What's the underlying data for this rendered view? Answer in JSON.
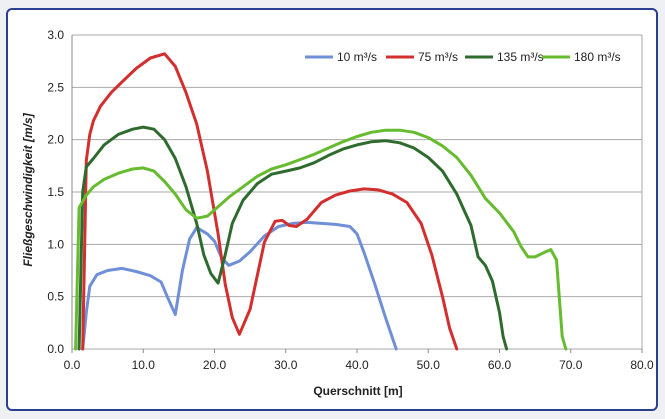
{
  "chart_data": {
    "type": "line",
    "title": "",
    "xlabel": "Querschnitt [m]",
    "ylabel": "Fließgeschwindigkeit [m/s]",
    "xlim": [
      0,
      80
    ],
    "ylim": [
      0,
      3.0
    ],
    "x_ticks": [
      "0.0",
      "10.0",
      "20.0",
      "30.0",
      "40.0",
      "50.0",
      "60.0",
      "70.0",
      "80.0"
    ],
    "y_ticks": [
      "0.0",
      "0.5",
      "1.0",
      "1.5",
      "2.0",
      "2.5",
      "3.0"
    ],
    "grid": "horizontal",
    "legend_position": "top-right",
    "series": [
      {
        "name": "10 m³/s",
        "color": "#6f8fd6",
        "x": [
          1.5,
          2.0,
          2.5,
          3.5,
          5.0,
          7.0,
          9.0,
          11.0,
          12.5,
          13.5,
          14.5,
          15.5,
          16.5,
          17.5,
          19.0,
          20.0,
          21.0,
          22.0,
          23.5,
          25.0,
          27.0,
          29.0,
          31.0,
          33.0,
          35.0,
          37.0,
          39.0,
          40.0,
          41.0,
          42.5,
          44.0,
          45.5
        ],
        "y": [
          0.0,
          0.35,
          0.6,
          0.71,
          0.75,
          0.77,
          0.74,
          0.7,
          0.64,
          0.48,
          0.33,
          0.75,
          1.05,
          1.16,
          1.1,
          1.03,
          0.87,
          0.8,
          0.84,
          0.93,
          1.08,
          1.17,
          1.2,
          1.21,
          1.2,
          1.19,
          1.17,
          1.1,
          0.92,
          0.62,
          0.3,
          0.0
        ]
      },
      {
        "name": "75 m³/s",
        "color": "#d32f2f",
        "x": [
          1.5,
          2.0,
          2.5,
          3.0,
          4.0,
          5.5,
          7.0,
          9.0,
          11.0,
          13.0,
          14.5,
          16.0,
          17.5,
          19.0,
          20.5,
          21.5,
          22.5,
          23.5,
          25.0,
          27.0,
          28.5,
          29.5,
          30.5,
          31.5,
          33.0,
          35.0,
          37.0,
          39.0,
          41.0,
          43.0,
          45.0,
          47.0,
          49.0,
          50.5,
          52.0,
          53.0,
          54.0
        ],
        "y": [
          0.0,
          1.8,
          2.05,
          2.18,
          2.32,
          2.45,
          2.55,
          2.68,
          2.78,
          2.82,
          2.7,
          2.45,
          2.15,
          1.7,
          1.1,
          0.62,
          0.3,
          0.14,
          0.38,
          1.02,
          1.22,
          1.23,
          1.18,
          1.17,
          1.24,
          1.4,
          1.47,
          1.51,
          1.53,
          1.52,
          1.48,
          1.4,
          1.2,
          0.9,
          0.5,
          0.2,
          0.0
        ]
      },
      {
        "name": "135 m³/s",
        "color": "#2f6b2f",
        "x": [
          1.0,
          1.5,
          2.0,
          3.0,
          4.5,
          6.5,
          8.5,
          10.0,
          11.5,
          13.0,
          14.5,
          16.0,
          17.5,
          18.5,
          19.5,
          20.5,
          21.5,
          22.5,
          24.0,
          26.0,
          28.0,
          30.0,
          32.0,
          34.0,
          36.0,
          38.0,
          40.0,
          42.0,
          44.0,
          46.0,
          48.0,
          50.0,
          52.0,
          54.0,
          56.0,
          57.0,
          58.0,
          59.0,
          60.0,
          60.5,
          61.0
        ],
        "y": [
          0.0,
          1.5,
          1.74,
          1.82,
          1.95,
          2.05,
          2.1,
          2.12,
          2.1,
          2.0,
          1.82,
          1.55,
          1.2,
          0.9,
          0.72,
          0.63,
          0.9,
          1.2,
          1.42,
          1.58,
          1.67,
          1.7,
          1.73,
          1.78,
          1.85,
          1.91,
          1.95,
          1.98,
          1.99,
          1.97,
          1.92,
          1.83,
          1.7,
          1.48,
          1.18,
          0.88,
          0.8,
          0.65,
          0.35,
          0.12,
          0.0
        ]
      },
      {
        "name": "180 m³/s",
        "color": "#66bb2e",
        "x": [
          0.5,
          1.0,
          2.0,
          3.0,
          4.5,
          6.5,
          8.5,
          10.0,
          11.5,
          13.0,
          14.5,
          16.0,
          17.5,
          19.0,
          20.5,
          22.0,
          24.0,
          26.0,
          28.0,
          30.0,
          32.0,
          34.0,
          36.0,
          38.0,
          40.0,
          42.0,
          44.0,
          46.0,
          48.0,
          50.0,
          52.0,
          54.0,
          56.0,
          58.0,
          60.0,
          62.0,
          63.0,
          64.0,
          65.0,
          66.5,
          67.2,
          68.0,
          68.8,
          69.3
        ],
        "y": [
          0.0,
          1.35,
          1.47,
          1.55,
          1.62,
          1.68,
          1.72,
          1.73,
          1.7,
          1.6,
          1.48,
          1.33,
          1.25,
          1.27,
          1.36,
          1.45,
          1.55,
          1.65,
          1.72,
          1.76,
          1.81,
          1.86,
          1.92,
          1.98,
          2.03,
          2.07,
          2.09,
          2.09,
          2.07,
          2.02,
          1.94,
          1.83,
          1.66,
          1.44,
          1.3,
          1.12,
          0.98,
          0.88,
          0.88,
          0.93,
          0.95,
          0.85,
          0.12,
          0.0
        ]
      }
    ]
  }
}
